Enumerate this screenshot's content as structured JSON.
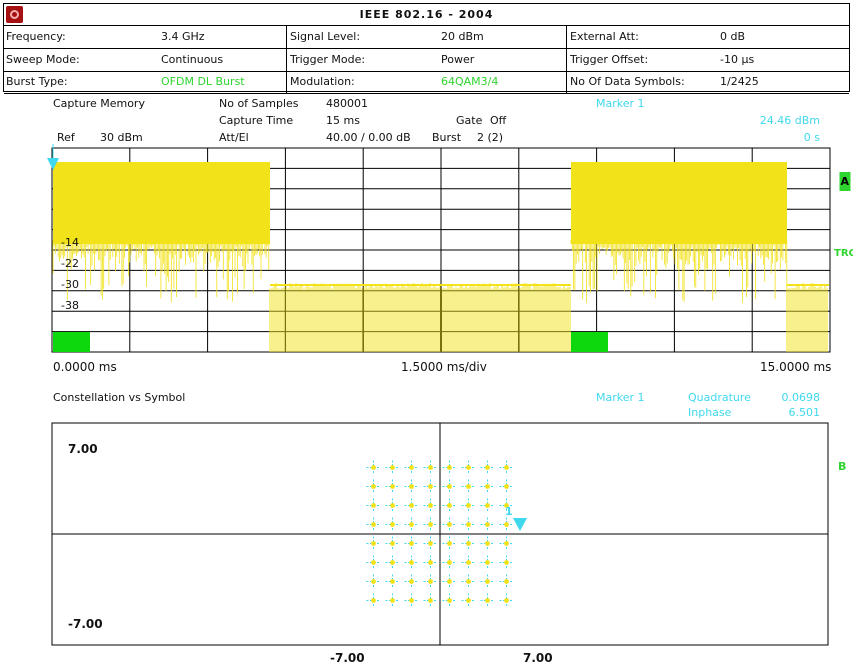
{
  "header": {
    "title": "IEEE 802.16 - 2004",
    "rows": [
      [
        {
          "label": "Frequency:",
          "value": "3.4 GHz",
          "value_color": "#111111"
        },
        {
          "label": "Signal Level:",
          "value": "20 dBm",
          "value_color": "#111111"
        },
        {
          "label": "External Att:",
          "value": "0 dB",
          "value_color": "#111111"
        }
      ],
      [
        {
          "label": "Sweep Mode:",
          "value": "Continuous",
          "value_color": "#111111"
        },
        {
          "label": "Trigger Mode:",
          "value": "Power",
          "value_color": "#111111"
        },
        {
          "label": "Trigger Offset:",
          "value": "-10 µs",
          "value_color": "#111111"
        }
      ],
      [
        {
          "label": "Burst Type:",
          "value": "OFDM DL Burst",
          "value_color": "#2fd42f"
        },
        {
          "label": "Modulation:",
          "value": "64QAM3/4",
          "value_color": "#2fd42f"
        },
        {
          "label": "No Of Data Symbols:",
          "value": "1/2425",
          "value_color": "#111111"
        }
      ]
    ]
  },
  "capture": {
    "title": "Capture Memory",
    "samples_label": "No of Samples",
    "samples_value": "480001",
    "time_label": "Capture Time",
    "time_value": "15 ms",
    "gate_label": "Gate",
    "gate_value": "Off",
    "att_label": "Att/El",
    "att_value": "40.00 / 0.00 dB",
    "burst_label": "Burst",
    "burst_value": "2 (2)",
    "ref_label": "Ref",
    "ref_value": "30 dBm",
    "marker_label": "Marker  1",
    "marker_level": "24.46 dBm",
    "marker_time": "0 s",
    "y_ticks": [
      "-14",
      "-22",
      "-30",
      "-38"
    ],
    "x_start": "0.0000 ms",
    "x_div": "1.5000 ms/div",
    "x_end": "15.0000 ms",
    "side_a": "A",
    "side_trg": "TRG",
    "trace_color": "#f2e21a",
    "burst_marker_color": "#0dd80d"
  },
  "constellation": {
    "title": "Constellation vs Symbol",
    "marker_label": "Marker  1",
    "quad_label": "Quadrature",
    "quad_value": "0.0698",
    "inph_label": "Inphase",
    "inph_value": "6.501",
    "y_top": "7.00",
    "y_bottom": "-7.00",
    "x_left": "-7.00",
    "x_right": "7.00",
    "side_b": "B",
    "marker_num": "1",
    "point_color": "#f2e21a",
    "cross_color": "#40d8ee"
  }
}
